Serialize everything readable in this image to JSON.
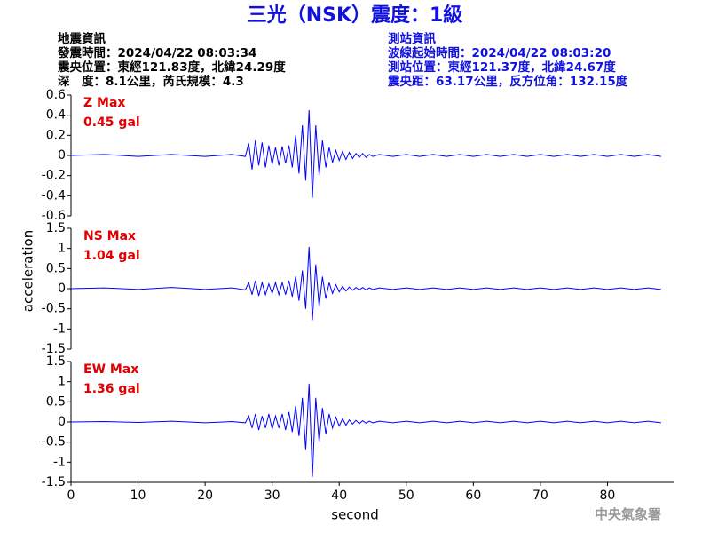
{
  "title": "三光（NSK）震度：1級",
  "info_left": [
    "地震資訊",
    "發震時間：2024/04/22 08:03:34",
    "震央位置：東經121.83度，北緯24.29度",
    "深　度：8.1公里，芮氏規模：4.3"
  ],
  "info_right": [
    "測站資訊",
    "波線起始時間：2024/04/22 08:03:20",
    "測站位置：東經121.37度，北緯24.67度",
    "震央距：63.17公里，反方位角：132.15度"
  ],
  "footer": "中央氣象署",
  "chart_data": [
    {
      "type": "line",
      "annotation": [
        "Z Max",
        "0.45 gal"
      ],
      "color": "#0000ff",
      "xlim": [
        0,
        90
      ],
      "ylim": [
        -0.6,
        0.6
      ],
      "yticks": [
        0.6,
        0.4,
        0.2,
        0,
        -0.2,
        -0.4,
        -0.6
      ],
      "x": [
        0,
        5,
        10,
        15,
        20,
        24,
        26,
        26.5,
        27,
        27.5,
        28,
        28.5,
        29,
        29.5,
        30,
        30.5,
        31,
        31.5,
        32,
        32.5,
        33,
        33.5,
        34,
        34.5,
        35,
        35.5,
        36,
        36.5,
        37,
        37.5,
        38,
        38.5,
        39,
        39.5,
        40,
        40.5,
        41,
        41.5,
        42,
        42.5,
        43,
        43.5,
        44,
        44.5,
        45,
        46,
        48,
        50,
        52,
        54,
        56,
        58,
        60,
        62,
        64,
        66,
        68,
        70,
        72,
        74,
        76,
        78,
        80,
        82,
        84,
        86,
        88
      ],
      "values": [
        0,
        0.01,
        -0.01,
        0.01,
        -0.01,
        0.01,
        -0.01,
        0.12,
        -0.14,
        0.15,
        -0.1,
        0.13,
        -0.12,
        0.1,
        -0.09,
        0.08,
        -0.1,
        0.09,
        -0.08,
        0.1,
        -0.12,
        0.2,
        -0.18,
        0.3,
        -0.25,
        0.45,
        -0.42,
        0.3,
        -0.2,
        0.15,
        -0.12,
        0.08,
        -0.07,
        0.05,
        -0.05,
        0.04,
        -0.04,
        0.03,
        -0.03,
        0.02,
        -0.02,
        0.02,
        -0.02,
        0.01,
        -0.01,
        0.01,
        -0.01,
        0.01,
        -0.01,
        0.01,
        -0.01,
        0.01,
        -0.01,
        0.01,
        -0.01,
        0.01,
        -0.01,
        0.01,
        -0.01,
        0.01,
        -0.01,
        0.01,
        -0.01,
        0.01,
        -0.01,
        0.01,
        -0.01
      ]
    },
    {
      "type": "line",
      "annotation": [
        "NS Max",
        "1.04 gal"
      ],
      "color": "#0000ff",
      "ylabel": "acceleration",
      "xlim": [
        0,
        90
      ],
      "ylim": [
        -1.5,
        1.5
      ],
      "yticks": [
        1.5,
        1,
        0.5,
        0,
        -0.5,
        -1,
        -1.5
      ],
      "x": [
        0,
        5,
        10,
        15,
        20,
        24,
        26,
        26.5,
        27,
        27.5,
        28,
        28.5,
        29,
        29.5,
        30,
        30.5,
        31,
        31.5,
        32,
        32.5,
        33,
        33.5,
        34,
        34.5,
        35,
        35.5,
        36,
        36.5,
        37,
        37.5,
        38,
        38.5,
        39,
        39.5,
        40,
        40.5,
        41,
        41.5,
        42,
        42.5,
        43,
        43.5,
        44,
        44.5,
        45,
        46,
        48,
        50,
        52,
        54,
        56,
        58,
        60,
        62,
        64,
        66,
        68,
        70,
        72,
        74,
        76,
        78,
        80,
        82,
        84,
        86,
        88
      ],
      "values": [
        0,
        0.02,
        -0.02,
        0.03,
        -0.02,
        0.02,
        -0.03,
        0.15,
        -0.15,
        0.2,
        -0.18,
        0.15,
        -0.15,
        0.12,
        -0.12,
        0.15,
        -0.15,
        0.15,
        -0.15,
        0.2,
        -0.2,
        0.3,
        -0.3,
        0.45,
        -0.5,
        1.04,
        -0.78,
        0.6,
        -0.45,
        0.3,
        -0.25,
        0.15,
        -0.12,
        0.1,
        -0.08,
        0.06,
        -0.06,
        0.04,
        -0.04,
        0.03,
        -0.03,
        0.03,
        -0.03,
        0.02,
        -0.02,
        0.02,
        -0.02,
        0.02,
        -0.02,
        0.02,
        -0.02,
        0.02,
        -0.02,
        0.02,
        -0.02,
        0.02,
        -0.02,
        0.02,
        -0.02,
        0.02,
        -0.02,
        0.02,
        -0.02,
        0.02,
        -0.02,
        0.02,
        -0.02
      ]
    },
    {
      "type": "line",
      "annotation": [
        "EW Max",
        "1.36 gal"
      ],
      "color": "#0000ff",
      "xlabel": "second",
      "xlim": [
        0,
        90
      ],
      "xticks": [
        0,
        10,
        20,
        30,
        40,
        50,
        60,
        70,
        80
      ],
      "ylim": [
        -1.5,
        1.5
      ],
      "yticks": [
        1.5,
        1,
        0.5,
        0,
        -0.5,
        -1,
        -1.5
      ],
      "x": [
        0,
        5,
        10,
        15,
        20,
        24,
        26,
        26.5,
        27,
        27.5,
        28,
        28.5,
        29,
        29.5,
        30,
        30.5,
        31,
        31.5,
        32,
        32.5,
        33,
        33.5,
        34,
        34.5,
        35,
        35.5,
        36,
        36.5,
        37,
        37.5,
        38,
        38.5,
        39,
        39.5,
        40,
        40.5,
        41,
        41.5,
        42,
        42.5,
        43,
        43.5,
        44,
        44.5,
        45,
        46,
        48,
        50,
        52,
        54,
        56,
        58,
        60,
        62,
        64,
        66,
        68,
        70,
        72,
        74,
        76,
        78,
        80,
        82,
        84,
        86,
        88
      ],
      "values": [
        0,
        0.01,
        -0.01,
        0.02,
        -0.02,
        0.01,
        -0.02,
        0.15,
        -0.15,
        0.2,
        -0.2,
        0.15,
        -0.15,
        0.2,
        -0.18,
        0.15,
        -0.15,
        0.2,
        -0.2,
        0.25,
        -0.25,
        0.4,
        -0.35,
        0.6,
        -0.7,
        0.95,
        -1.36,
        0.6,
        -0.5,
        0.35,
        -0.3,
        0.2,
        -0.15,
        0.12,
        -0.1,
        0.08,
        -0.08,
        0.05,
        -0.05,
        0.04,
        -0.04,
        0.03,
        -0.03,
        0.02,
        -0.02,
        0.02,
        -0.02,
        0.02,
        -0.02,
        0.02,
        -0.02,
        0.02,
        -0.02,
        0.02,
        -0.02,
        0.02,
        -0.02,
        0.02,
        -0.02,
        0.02,
        -0.02,
        0.02,
        -0.02,
        0.02,
        -0.02,
        0.02,
        -0.02
      ]
    }
  ]
}
